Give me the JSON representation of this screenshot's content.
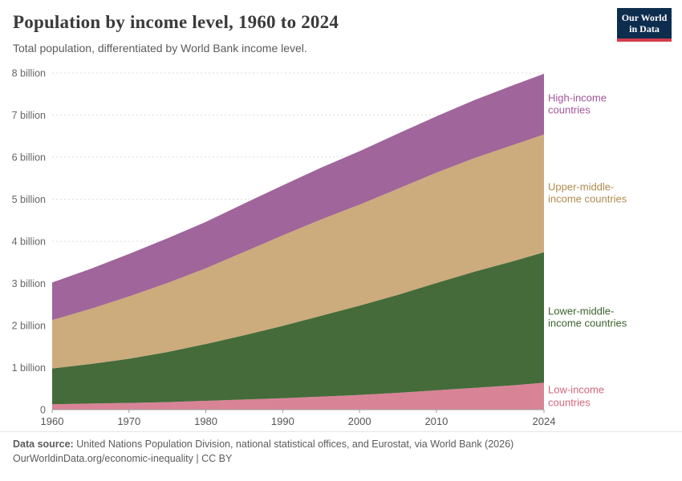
{
  "header": {
    "title": "Population by income level, 1960 to 2024",
    "subtitle": "Total population, differentiated by World Bank income level.",
    "logo_line1": "Our World",
    "logo_line2": "in Data"
  },
  "chart_data": {
    "type": "area",
    "stacked": true,
    "title": "Population by income level, 1960 to 2024",
    "unit": "billion people",
    "grid": "dashed-horizontal",
    "legend_position": "right-edge-labels",
    "ylim": [
      0,
      8
    ],
    "x": [
      1960,
      1965,
      1970,
      1975,
      1980,
      1985,
      1990,
      1995,
      2000,
      2005,
      2010,
      2015,
      2020,
      2024
    ],
    "series": [
      {
        "name": "Low-income countries",
        "color": "#d98397",
        "label_color": "#d0677d",
        "values": [
          0.13,
          0.145,
          0.16,
          0.18,
          0.21,
          0.24,
          0.27,
          0.31,
          0.35,
          0.4,
          0.46,
          0.52,
          0.58,
          0.64
        ]
      },
      {
        "name": "Lower-middle-income countries",
        "color": "#456b3a",
        "label_color": "#3b632e",
        "values": [
          0.85,
          0.94,
          1.05,
          1.19,
          1.35,
          1.53,
          1.72,
          1.92,
          2.12,
          2.33,
          2.55,
          2.76,
          2.95,
          3.1
        ]
      },
      {
        "name": "Upper-middle-income countries",
        "color": "#ccab7c",
        "label_color": "#b08b4f",
        "values": [
          1.15,
          1.31,
          1.48,
          1.64,
          1.8,
          1.98,
          2.15,
          2.29,
          2.4,
          2.52,
          2.62,
          2.7,
          2.76,
          2.8
        ]
      },
      {
        "name": "High-income countries",
        "color": "#a0659a",
        "label_color": "#a2559c",
        "values": [
          0.89,
          0.95,
          1.01,
          1.06,
          1.1,
          1.15,
          1.19,
          1.23,
          1.27,
          1.31,
          1.34,
          1.38,
          1.42,
          1.44
        ]
      }
    ],
    "y_ticks": [
      {
        "value": 0,
        "label": "0"
      },
      {
        "value": 1,
        "label": "1 billion"
      },
      {
        "value": 2,
        "label": "2 billion"
      },
      {
        "value": 3,
        "label": "3 billion"
      },
      {
        "value": 4,
        "label": "4 billion"
      },
      {
        "value": 5,
        "label": "5 billion"
      },
      {
        "value": 6,
        "label": "6 billion"
      },
      {
        "value": 7,
        "label": "7 billion"
      },
      {
        "value": 8,
        "label": "8 billion"
      }
    ],
    "x_ticks": [
      {
        "value": 1960,
        "label": "1960"
      },
      {
        "value": 1970,
        "label": "1970"
      },
      {
        "value": 1980,
        "label": "1980"
      },
      {
        "value": 1990,
        "label": "1990"
      },
      {
        "value": 2000,
        "label": "2000"
      },
      {
        "value": 2010,
        "label": "2010"
      },
      {
        "value": 2024,
        "label": "2024"
      }
    ]
  },
  "footer": {
    "source_label": "Data source:",
    "source_text": "United Nations Population Division, national statistical offices, and Eurostat, via World Bank (2026)",
    "link": "OurWorldinData.org/economic-inequality",
    "divider": "|",
    "license": "CC BY"
  }
}
